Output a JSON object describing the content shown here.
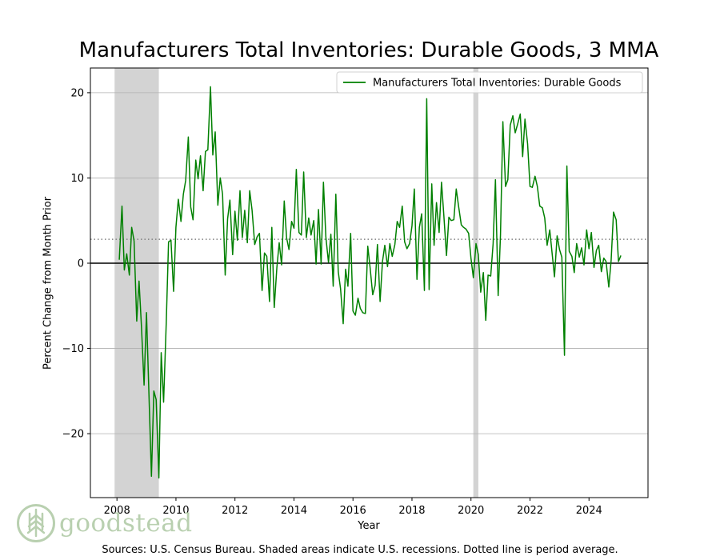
{
  "colors": {
    "line": "#008000",
    "recession": "#d3d3d3",
    "grid": "#b0b0b0",
    "zero": "#000000",
    "avg": "#808080",
    "logo": "#b9d0b0"
  },
  "logo": {
    "text": "goodstead",
    "icon": "tree-logo-icon"
  },
  "source_note": "Sources: U.S. Census Bureau. Shaded areas indicate U.S. recessions. Dotted line is period average.",
  "chart_data": {
    "type": "line",
    "title": "Manufacturers Total Inventories: Durable Goods, 3 MMA",
    "xlabel": "Year",
    "ylabel": "Percent Change from Month Prior",
    "xlim": [
      2007.1,
      2026.0
    ],
    "ylim": [
      -27.5,
      22.9
    ],
    "xticks": [
      2008,
      2010,
      2012,
      2014,
      2016,
      2018,
      2020,
      2022,
      2024
    ],
    "xtick_labels": [
      "2008",
      "2010",
      "2012",
      "2014",
      "2016",
      "2018",
      "2020",
      "2022",
      "2024"
    ],
    "yticks": [
      -20,
      -10,
      0,
      10,
      20
    ],
    "ytick_labels": [
      "−20",
      "−10",
      "0",
      "10",
      "20"
    ],
    "grid": "y",
    "legend": {
      "position": "top-right",
      "entries": [
        "Manufacturers Total Inventories: Durable Goods"
      ]
    },
    "recessions": [
      [
        2007.92,
        2009.42
      ],
      [
        2020.08,
        2020.25
      ]
    ],
    "average": 2.8,
    "series": [
      {
        "name": "Manufacturers Total Inventories: Durable Goods",
        "points": [
          [
            2008.08,
            0.4
          ],
          [
            2008.17,
            6.7
          ],
          [
            2008.25,
            -0.8
          ],
          [
            2008.33,
            1.1
          ],
          [
            2008.42,
            -1.4
          ],
          [
            2008.5,
            4.2
          ],
          [
            2008.58,
            2.6
          ],
          [
            2008.67,
            -6.8
          ],
          [
            2008.75,
            -2.1
          ],
          [
            2008.83,
            -7.4
          ],
          [
            2008.92,
            -14.3
          ],
          [
            2009.0,
            -5.8
          ],
          [
            2009.08,
            -14.8
          ],
          [
            2009.17,
            -25.0
          ],
          [
            2009.25,
            -15.0
          ],
          [
            2009.33,
            -16.0
          ],
          [
            2009.42,
            -25.2
          ],
          [
            2009.5,
            -10.5
          ],
          [
            2009.58,
            -16.3
          ],
          [
            2009.67,
            -7.0
          ],
          [
            2009.75,
            2.5
          ],
          [
            2009.83,
            2.7
          ],
          [
            2009.92,
            -3.3
          ],
          [
            2010.0,
            4.2
          ],
          [
            2010.08,
            7.5
          ],
          [
            2010.17,
            4.9
          ],
          [
            2010.25,
            8.1
          ],
          [
            2010.33,
            9.7
          ],
          [
            2010.42,
            14.8
          ],
          [
            2010.5,
            6.6
          ],
          [
            2010.58,
            5.1
          ],
          [
            2010.67,
            12.1
          ],
          [
            2010.75,
            9.9
          ],
          [
            2010.83,
            12.6
          ],
          [
            2010.92,
            8.5
          ],
          [
            2011.0,
            13.1
          ],
          [
            2011.08,
            13.3
          ],
          [
            2011.17,
            20.7
          ],
          [
            2011.25,
            12.7
          ],
          [
            2011.33,
            15.4
          ],
          [
            2011.42,
            6.8
          ],
          [
            2011.5,
            10.0
          ],
          [
            2011.58,
            8.1
          ],
          [
            2011.67,
            -1.4
          ],
          [
            2011.75,
            5.2
          ],
          [
            2011.83,
            7.4
          ],
          [
            2011.92,
            1.0
          ],
          [
            2012.0,
            6.1
          ],
          [
            2012.08,
            2.7
          ],
          [
            2012.17,
            8.5
          ],
          [
            2012.25,
            3.0
          ],
          [
            2012.33,
            6.2
          ],
          [
            2012.42,
            2.4
          ],
          [
            2012.5,
            8.5
          ],
          [
            2012.58,
            6.2
          ],
          [
            2012.67,
            2.2
          ],
          [
            2012.75,
            3.1
          ],
          [
            2012.83,
            3.5
          ],
          [
            2012.92,
            -3.2
          ],
          [
            2013.0,
            1.2
          ],
          [
            2013.08,
            0.8
          ],
          [
            2013.17,
            -4.5
          ],
          [
            2013.25,
            4.2
          ],
          [
            2013.33,
            -5.2
          ],
          [
            2013.42,
            -0.5
          ],
          [
            2013.5,
            2.4
          ],
          [
            2013.58,
            -0.2
          ],
          [
            2013.67,
            7.3
          ],
          [
            2013.75,
            3.0
          ],
          [
            2013.83,
            1.6
          ],
          [
            2013.92,
            4.9
          ],
          [
            2014.0,
            4.1
          ],
          [
            2014.08,
            11.0
          ],
          [
            2014.17,
            3.6
          ],
          [
            2014.25,
            3.3
          ],
          [
            2014.33,
            10.7
          ],
          [
            2014.42,
            3.0
          ],
          [
            2014.5,
            5.3
          ],
          [
            2014.58,
            3.3
          ],
          [
            2014.67,
            5.0
          ],
          [
            2014.75,
            -0.1
          ],
          [
            2014.83,
            6.3
          ],
          [
            2014.92,
            -0.1
          ],
          [
            2015.0,
            9.5
          ],
          [
            2015.08,
            3.1
          ],
          [
            2015.17,
            0.1
          ],
          [
            2015.25,
            3.4
          ],
          [
            2015.33,
            -2.7
          ],
          [
            2015.42,
            8.1
          ],
          [
            2015.5,
            -1.0
          ],
          [
            2015.58,
            -3.0
          ],
          [
            2015.67,
            -7.1
          ],
          [
            2015.75,
            -0.7
          ],
          [
            2015.83,
            -2.7
          ],
          [
            2015.92,
            3.5
          ],
          [
            2016.0,
            -5.6
          ],
          [
            2016.08,
            -6.1
          ],
          [
            2016.17,
            -4.1
          ],
          [
            2016.25,
            -5.3
          ],
          [
            2016.33,
            -5.8
          ],
          [
            2016.42,
            -5.9
          ],
          [
            2016.5,
            2.0
          ],
          [
            2016.58,
            -0.5
          ],
          [
            2016.67,
            -3.7
          ],
          [
            2016.75,
            -2.6
          ],
          [
            2016.83,
            2.2
          ],
          [
            2016.92,
            -4.5
          ],
          [
            2017.0,
            0.2
          ],
          [
            2017.08,
            2.1
          ],
          [
            2017.17,
            -0.4
          ],
          [
            2017.25,
            2.3
          ],
          [
            2017.33,
            0.8
          ],
          [
            2017.42,
            2.2
          ],
          [
            2017.5,
            4.9
          ],
          [
            2017.58,
            4.2
          ],
          [
            2017.67,
            6.7
          ],
          [
            2017.75,
            2.5
          ],
          [
            2017.83,
            1.7
          ],
          [
            2017.92,
            2.3
          ],
          [
            2018.0,
            4.4
          ],
          [
            2018.08,
            8.7
          ],
          [
            2018.17,
            -1.9
          ],
          [
            2018.25,
            4.2
          ],
          [
            2018.33,
            5.8
          ],
          [
            2018.42,
            -3.2
          ],
          [
            2018.5,
            19.3
          ],
          [
            2018.58,
            -3.1
          ],
          [
            2018.67,
            9.3
          ],
          [
            2018.75,
            2.1
          ],
          [
            2018.83,
            7.1
          ],
          [
            2018.92,
            3.6
          ],
          [
            2019.0,
            9.5
          ],
          [
            2019.08,
            5.6
          ],
          [
            2019.17,
            0.9
          ],
          [
            2019.25,
            5.4
          ],
          [
            2019.33,
            5.0
          ],
          [
            2019.42,
            5.1
          ],
          [
            2019.5,
            8.7
          ],
          [
            2019.58,
            6.7
          ],
          [
            2019.67,
            4.5
          ],
          [
            2019.75,
            4.2
          ],
          [
            2019.83,
            4.0
          ],
          [
            2019.92,
            3.5
          ],
          [
            2020.0,
            0.6
          ],
          [
            2020.08,
            -1.7
          ],
          [
            2020.17,
            2.3
          ],
          [
            2020.25,
            1.0
          ],
          [
            2020.33,
            -3.4
          ],
          [
            2020.42,
            -1.1
          ],
          [
            2020.5,
            -6.7
          ],
          [
            2020.58,
            -1.4
          ],
          [
            2020.67,
            -1.5
          ],
          [
            2020.75,
            2.3
          ],
          [
            2020.83,
            9.8
          ],
          [
            2020.92,
            -3.8
          ],
          [
            2021.0,
            3.3
          ],
          [
            2021.08,
            16.6
          ],
          [
            2021.17,
            9.0
          ],
          [
            2021.25,
            9.8
          ],
          [
            2021.33,
            16.2
          ],
          [
            2021.42,
            17.3
          ],
          [
            2021.5,
            15.3
          ],
          [
            2021.58,
            16.3
          ],
          [
            2021.67,
            17.5
          ],
          [
            2021.75,
            12.5
          ],
          [
            2021.83,
            16.9
          ],
          [
            2021.92,
            14.0
          ],
          [
            2022.0,
            9.0
          ],
          [
            2022.08,
            8.9
          ],
          [
            2022.17,
            10.2
          ],
          [
            2022.25,
            9.0
          ],
          [
            2022.33,
            6.7
          ],
          [
            2022.42,
            6.5
          ],
          [
            2022.5,
            5.3
          ],
          [
            2022.58,
            2.1
          ],
          [
            2022.67,
            3.9
          ],
          [
            2022.75,
            1.2
          ],
          [
            2022.83,
            -1.6
          ],
          [
            2022.92,
            3.2
          ],
          [
            2023.0,
            1.6
          ],
          [
            2023.08,
            0.7
          ],
          [
            2023.17,
            -10.8
          ],
          [
            2023.25,
            11.4
          ],
          [
            2023.33,
            1.4
          ],
          [
            2023.42,
            0.8
          ],
          [
            2023.5,
            -1.1
          ],
          [
            2023.58,
            2.3
          ],
          [
            2023.67,
            0.7
          ],
          [
            2023.75,
            1.8
          ],
          [
            2023.83,
            -0.2
          ],
          [
            2023.92,
            3.9
          ],
          [
            2024.0,
            1.7
          ],
          [
            2024.08,
            3.6
          ],
          [
            2024.17,
            -0.5
          ],
          [
            2024.25,
            1.5
          ],
          [
            2024.33,
            2.1
          ],
          [
            2024.42,
            -1.0
          ],
          [
            2024.5,
            0.6
          ],
          [
            2024.58,
            0.2
          ],
          [
            2024.67,
            -2.8
          ],
          [
            2024.75,
            0.3
          ],
          [
            2024.83,
            6.0
          ],
          [
            2024.92,
            5.1
          ],
          [
            2025.0,
            0.2
          ],
          [
            2025.08,
            0.9
          ]
        ]
      }
    ]
  }
}
